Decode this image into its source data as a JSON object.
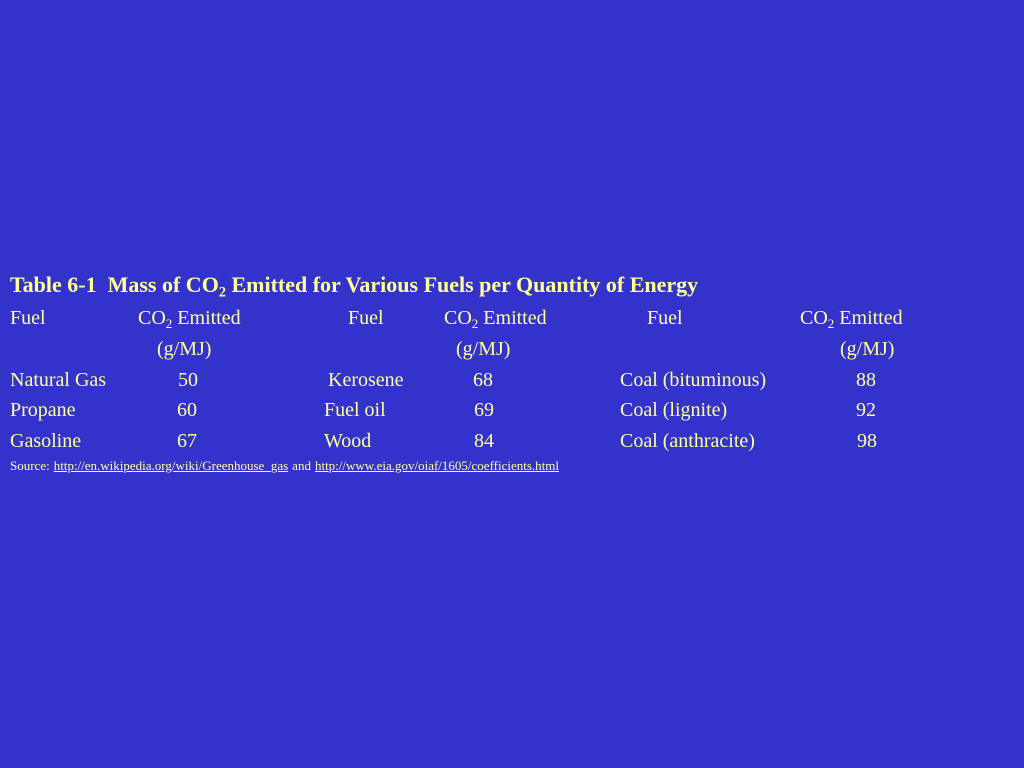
{
  "title": {
    "parts": [
      "Table 6-1  Mass of CO",
      "2",
      " Emitted for Various Fuels per Quantity of Energy"
    ]
  },
  "table": {
    "headers": [
      {
        "fuel": "Fuel",
        "co2": [
          "CO",
          "2",
          " Emitted"
        ],
        "unit": "(g/MJ)"
      },
      {
        "fuel": "Fuel",
        "co2": [
          "CO",
          "2",
          " Emitted"
        ],
        "unit": "(g/MJ)"
      },
      {
        "fuel": "Fuel",
        "co2": [
          "CO",
          "2",
          " Emitted"
        ],
        "unit": "(g/MJ)"
      }
    ],
    "rows": [
      [
        {
          "fuel": "Natural Gas",
          "value": 50
        },
        {
          "fuel": "Kerosene",
          "value": 68
        },
        {
          "fuel": "Coal (bituminous)",
          "value": 88
        }
      ],
      [
        {
          "fuel": "Propane",
          "value": 60
        },
        {
          "fuel": "Fuel oil",
          "value": 69
        },
        {
          "fuel": "Coal (lignite)",
          "value": 92
        }
      ],
      [
        {
          "fuel": "Gasoline",
          "value": 67
        },
        {
          "fuel": "Wood",
          "value": 84
        },
        {
          "fuel": "Coal (anthracite)",
          "value": 98
        }
      ]
    ]
  },
  "source": {
    "label": "Source:",
    "links": [
      "http://en.wikipedia.org/wiki/Greenhouse_gas",
      "http://www.eia.gov/oiaf/1605/coefficients.html"
    ],
    "joiner": "and"
  }
}
